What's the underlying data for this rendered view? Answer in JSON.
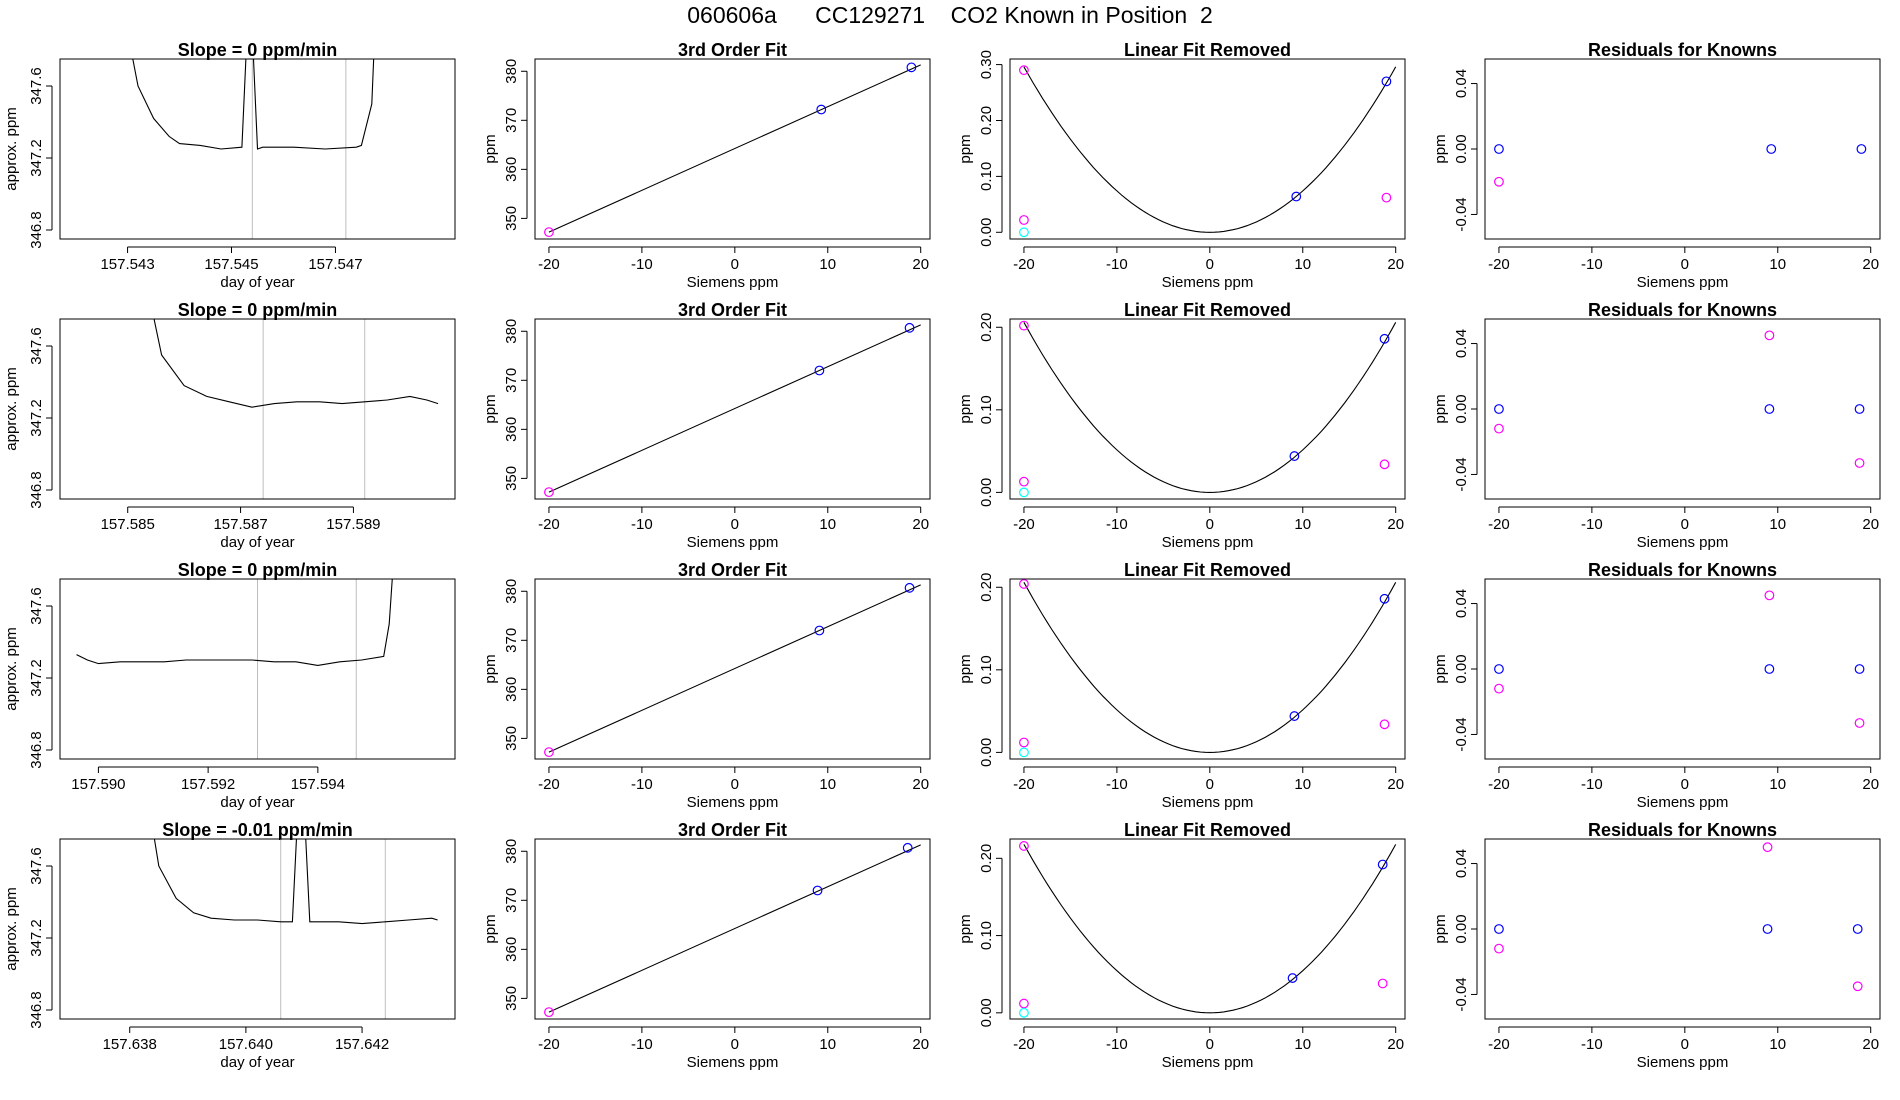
{
  "figure": {
    "title": "060606a      CC129271    CO2 Known in Position  2"
  },
  "colors": {
    "frame": "#000000",
    "trace": "#000000",
    "gridline": "#bebebe",
    "blue_points": "#0000ff",
    "magenta_points": "#ff00ff",
    "cyan_points": "#00ffff",
    "red_marker": "#ff0000"
  },
  "chart_data": [
    {
      "type": "line",
      "row": 0,
      "col": 0,
      "title": "Slope =  0  ppm/min",
      "xlabel": "day of year",
      "ylabel": "approx. ppm",
      "xlim": [
        157.5417,
        157.5493
      ],
      "ylim": [
        346.75,
        347.75
      ],
      "xticks": [
        157.543,
        157.545,
        157.547
      ],
      "xticklabels": [
        "157.543",
        "157.545",
        "157.547"
      ],
      "yticks": [
        346.8,
        347.2,
        347.6
      ],
      "yticklabels": [
        "346.8",
        "347.2",
        "347.6"
      ],
      "vlines": [
        157.5454,
        157.5472
      ],
      "series": [
        {
          "x": [
            157.5428,
            157.5432,
            157.5435,
            157.5438,
            157.544,
            157.5444,
            157.5448,
            157.5452,
            157.5453,
            157.5454,
            157.5455,
            157.5456,
            157.5462,
            157.5468,
            157.5474,
            157.5475,
            157.5477,
            157.5478
          ],
          "y": [
            348.2,
            347.6,
            347.42,
            347.32,
            347.28,
            347.27,
            347.25,
            347.26,
            347.9,
            347.9,
            347.25,
            347.26,
            347.26,
            347.25,
            347.26,
            347.27,
            347.5,
            348.2
          ]
        }
      ]
    },
    {
      "type": "scatter",
      "row": 0,
      "col": 1,
      "title": "3rd Order Fit",
      "xlabel": "Siemens ppm",
      "ylabel": "ppm",
      "xlim": [
        -21.5,
        21
      ],
      "ylim": [
        345.8,
        382.5
      ],
      "xticks": [
        -20,
        -10,
        0,
        10,
        20
      ],
      "xticklabels": [
        "-20",
        "-10",
        "0",
        "10",
        "20"
      ],
      "yticks": [
        350,
        360,
        370,
        380
      ],
      "yticklabels": [
        "350",
        "360",
        "370",
        "380"
      ],
      "fit_line": [
        [
          -20,
          347.2
        ],
        [
          20,
          381.3
        ]
      ],
      "points": [
        {
          "x": -20,
          "y": 347.2,
          "color": "magenta"
        },
        {
          "x": 9.3,
          "y": 372.2,
          "color": "blue"
        },
        {
          "x": 19,
          "y": 380.8,
          "color": "blue"
        }
      ]
    },
    {
      "type": "scatter",
      "row": 0,
      "col": 2,
      "title": "Linear Fit Removed",
      "xlabel": "Siemens ppm",
      "ylabel": "ppm",
      "xlim": [
        -21.5,
        21
      ],
      "ylim": [
        -0.012,
        0.31
      ],
      "xticks": [
        -20,
        -10,
        0,
        10,
        20
      ],
      "xticklabels": [
        "-20",
        "-10",
        "0",
        "10",
        "20"
      ],
      "yticks": [
        0,
        0.1,
        0.2,
        0.3
      ],
      "yticklabels": [
        "0.00",
        "0.10",
        "0.20",
        "0.30"
      ],
      "curve": {
        "x_from": -20,
        "x_to": 20,
        "coef": 0.00074
      },
      "points": [
        {
          "x": -20,
          "y": 0.29,
          "color": "magenta"
        },
        {
          "x": -20,
          "y": 0.022,
          "color": "magenta"
        },
        {
          "x": -20,
          "y": 0.0,
          "color": "cyan"
        },
        {
          "x": 9.3,
          "y": 0.064,
          "color": "blue"
        },
        {
          "x": 19,
          "y": 0.27,
          "color": "blue"
        },
        {
          "x": 19,
          "y": 0.062,
          "color": "magenta"
        }
      ]
    },
    {
      "type": "scatter",
      "row": 0,
      "col": 3,
      "title": "Residuals for Knowns",
      "xlabel": "Siemens ppm",
      "ylabel": "ppm",
      "xlim": [
        -21.5,
        21
      ],
      "ylim": [
        -0.055,
        0.055
      ],
      "xticks": [
        -20,
        -10,
        0,
        10,
        20
      ],
      "xticklabels": [
        "-20",
        "-10",
        "0",
        "10",
        "20"
      ],
      "yticks": [
        -0.04,
        0,
        0.04
      ],
      "yticklabels": [
        "-0.04",
        "0.00",
        "0.04"
      ],
      "points": [
        {
          "x": -20,
          "y": 0.0,
          "color": "blue"
        },
        {
          "x": -20,
          "y": -0.02,
          "color": "magenta"
        },
        {
          "x": 9.3,
          "y": 0.0,
          "color": "blue"
        },
        {
          "x": 19,
          "y": 0.0,
          "color": "blue"
        }
      ]
    },
    {
      "type": "line",
      "row": 1,
      "col": 0,
      "title": "Slope =  0  ppm/min",
      "xlabel": "day of year",
      "ylabel": "approx. ppm",
      "xlim": [
        157.5838,
        157.5908
      ],
      "ylim": [
        346.75,
        347.75
      ],
      "xticks": [
        157.585,
        157.587,
        157.589
      ],
      "xticklabels": [
        "157.585",
        "157.587",
        "157.589"
      ],
      "vlines": [
        157.5874,
        157.5892
      ],
      "yticks": [
        346.8,
        347.2,
        347.6
      ],
      "yticklabels": [
        "346.8",
        "347.2",
        "347.6"
      ],
      "series": [
        {
          "x": [
            157.5853,
            157.5856,
            157.586,
            157.5864,
            157.5868,
            157.5872,
            157.5876,
            157.588,
            157.5884,
            157.5888,
            157.5892,
            157.5896,
            157.59,
            157.5903,
            157.5905
          ],
          "y": [
            348.0,
            347.55,
            347.38,
            347.32,
            347.29,
            347.26,
            347.28,
            347.29,
            347.29,
            347.28,
            347.29,
            347.3,
            347.32,
            347.3,
            347.28
          ]
        }
      ]
    },
    {
      "type": "scatter",
      "row": 1,
      "col": 1,
      "title": "3rd Order Fit",
      "xlabel": "Siemens ppm",
      "ylabel": "ppm",
      "xlim": [
        -21.5,
        21
      ],
      "ylim": [
        345.8,
        382.5
      ],
      "xticks": [
        -20,
        -10,
        0,
        10,
        20
      ],
      "xticklabels": [
        "-20",
        "-10",
        "0",
        "10",
        "20"
      ],
      "yticks": [
        350,
        360,
        370,
        380
      ],
      "yticklabels": [
        "350",
        "360",
        "370",
        "380"
      ],
      "fit_line": [
        [
          -20,
          347.2
        ],
        [
          20,
          381.3
        ]
      ],
      "points": [
        {
          "x": -20,
          "y": 347.2,
          "color": "magenta"
        },
        {
          "x": 9.1,
          "y": 372.0,
          "color": "blue"
        },
        {
          "x": 18.8,
          "y": 380.7,
          "color": "blue"
        }
      ]
    },
    {
      "type": "scatter",
      "row": 1,
      "col": 2,
      "title": "Linear Fit Removed",
      "xlabel": "Siemens ppm",
      "ylabel": "ppm",
      "xlim": [
        -21.5,
        21
      ],
      "ylim": [
        -0.008,
        0.21
      ],
      "xticks": [
        -20,
        -10,
        0,
        10,
        20
      ],
      "xticklabels": [
        "-20",
        "-10",
        "0",
        "10",
        "20"
      ],
      "yticks": [
        0,
        0.1,
        0.2
      ],
      "yticklabels": [
        "0.00",
        "0.10",
        "0.20"
      ],
      "curve": {
        "x_from": -20,
        "x_to": 20,
        "coef": 0.000515
      },
      "points": [
        {
          "x": -20,
          "y": 0.202,
          "color": "magenta"
        },
        {
          "x": -20,
          "y": 0.013,
          "color": "magenta"
        },
        {
          "x": -20,
          "y": 0.0,
          "color": "cyan"
        },
        {
          "x": 9.1,
          "y": 0.044,
          "color": "blue"
        },
        {
          "x": 18.8,
          "y": 0.186,
          "color": "blue"
        },
        {
          "x": 18.8,
          "y": 0.034,
          "color": "magenta"
        }
      ]
    },
    {
      "type": "scatter",
      "row": 1,
      "col": 3,
      "title": "Residuals for Knowns",
      "xlabel": "Siemens ppm",
      "ylabel": "ppm",
      "xlim": [
        -21.5,
        21
      ],
      "ylim": [
        -0.055,
        0.055
      ],
      "xticks": [
        -20,
        -10,
        0,
        10,
        20
      ],
      "xticklabels": [
        "-20",
        "-10",
        "0",
        "10",
        "20"
      ],
      "yticks": [
        -0.04,
        0,
        0.04
      ],
      "yticklabels": [
        "-0.04",
        "0.00",
        "0.04"
      ],
      "points": [
        {
          "x": -20,
          "y": 0.0,
          "color": "blue"
        },
        {
          "x": -20,
          "y": -0.012,
          "color": "magenta"
        },
        {
          "x": 9.1,
          "y": 0.0,
          "color": "blue"
        },
        {
          "x": 9.1,
          "y": 0.045,
          "color": "magenta"
        },
        {
          "x": 18.8,
          "y": 0.0,
          "color": "blue"
        },
        {
          "x": 18.8,
          "y": -0.033,
          "color": "magenta"
        }
      ]
    },
    {
      "type": "line",
      "row": 2,
      "col": 0,
      "title": "Slope =  0  ppm/min",
      "xlabel": "day of year",
      "ylabel": "approx. ppm",
      "xlim": [
        157.5893,
        157.5965
      ],
      "ylim": [
        346.75,
        347.75
      ],
      "xticks": [
        157.59,
        157.592,
        157.594
      ],
      "xticklabels": [
        "157.590",
        "157.592",
        "157.594"
      ],
      "vlines": [
        157.5929,
        157.5947
      ],
      "yticks": [
        346.8,
        347.2,
        347.6
      ],
      "yticklabels": [
        "346.8",
        "347.2",
        "347.6"
      ],
      "series": [
        {
          "x": [
            157.5896,
            157.5898,
            157.59,
            157.5904,
            157.5908,
            157.5912,
            157.5916,
            157.592,
            157.5924,
            157.5928,
            157.5932,
            157.5936,
            157.594,
            157.5944,
            157.5948,
            157.5952,
            157.5953,
            157.5954
          ],
          "y": [
            347.33,
            347.3,
            347.28,
            347.29,
            347.29,
            347.29,
            347.3,
            347.3,
            347.3,
            347.3,
            347.29,
            347.29,
            347.27,
            347.29,
            347.3,
            347.32,
            347.5,
            347.95
          ]
        }
      ]
    },
    {
      "type": "scatter",
      "row": 2,
      "col": 1,
      "title": "3rd Order Fit",
      "xlabel": "Siemens ppm",
      "ylabel": "ppm",
      "xlim": [
        -21.5,
        21
      ],
      "ylim": [
        345.8,
        382.5
      ],
      "xticks": [
        -20,
        -10,
        0,
        10,
        20
      ],
      "xticklabels": [
        "-20",
        "-10",
        "0",
        "10",
        "20"
      ],
      "yticks": [
        350,
        360,
        370,
        380
      ],
      "yticklabels": [
        "350",
        "360",
        "370",
        "380"
      ],
      "fit_line": [
        [
          -20,
          347.2
        ],
        [
          20,
          381.3
        ]
      ],
      "points": [
        {
          "x": -20,
          "y": 347.2,
          "color": "magenta"
        },
        {
          "x": 9.1,
          "y": 372.0,
          "color": "blue"
        },
        {
          "x": 18.8,
          "y": 380.7,
          "color": "blue"
        }
      ]
    },
    {
      "type": "scatter",
      "row": 2,
      "col": 2,
      "title": "Linear Fit Removed",
      "xlabel": "Siemens ppm",
      "ylabel": "ppm",
      "xlim": [
        -21.5,
        21
      ],
      "ylim": [
        -0.008,
        0.21
      ],
      "xticks": [
        -20,
        -10,
        0,
        10,
        20
      ],
      "xticklabels": [
        "-20",
        "-10",
        "0",
        "10",
        "20"
      ],
      "yticks": [
        0,
        0.1,
        0.2
      ],
      "yticklabels": [
        "0.00",
        "0.10",
        "0.20"
      ],
      "curve": {
        "x_from": -20,
        "x_to": 20,
        "coef": 0.000515
      },
      "points": [
        {
          "x": -20,
          "y": 0.204,
          "color": "magenta"
        },
        {
          "x": -20,
          "y": 0.012,
          "color": "magenta"
        },
        {
          "x": -20,
          "y": 0.0,
          "color": "cyan"
        },
        {
          "x": 9.1,
          "y": 0.044,
          "color": "blue"
        },
        {
          "x": 18.8,
          "y": 0.186,
          "color": "blue"
        },
        {
          "x": 18.8,
          "y": 0.034,
          "color": "magenta"
        }
      ]
    },
    {
      "type": "scatter",
      "row": 2,
      "col": 3,
      "title": "Residuals for Knowns",
      "xlabel": "Siemens ppm",
      "ylabel": "ppm",
      "xlim": [
        -21.5,
        21
      ],
      "ylim": [
        -0.055,
        0.055
      ],
      "xticks": [
        -20,
        -10,
        0,
        10,
        20
      ],
      "xticklabels": [
        "-20",
        "-10",
        "0",
        "10",
        "20"
      ],
      "yticks": [
        -0.04,
        0,
        0.04
      ],
      "yticklabels": [
        "-0.04",
        "0.00",
        "0.04"
      ],
      "points": [
        {
          "x": -20,
          "y": 0.0,
          "color": "blue"
        },
        {
          "x": -20,
          "y": -0.012,
          "color": "magenta"
        },
        {
          "x": 9.1,
          "y": 0.0,
          "color": "blue"
        },
        {
          "x": 9.1,
          "y": 0.045,
          "color": "magenta"
        },
        {
          "x": 18.8,
          "y": 0.0,
          "color": "blue"
        },
        {
          "x": 18.8,
          "y": -0.033,
          "color": "magenta"
        }
      ]
    },
    {
      "type": "line",
      "row": 3,
      "col": 0,
      "title": "Slope =  -0.01  ppm/min",
      "xlabel": "day of year",
      "ylabel": "approx. ppm",
      "xlim": [
        157.6368,
        157.6436
      ],
      "ylim": [
        346.75,
        347.75
      ],
      "xticks": [
        157.638,
        157.64,
        157.642
      ],
      "xticklabels": [
        "157.638",
        "157.640",
        "157.642"
      ],
      "vlines": [
        157.6406,
        157.6424
      ],
      "yticks": [
        346.8,
        347.2,
        347.6
      ],
      "yticklabels": [
        "346.8",
        "347.2",
        "347.6"
      ],
      "series": [
        {
          "x": [
            157.6382,
            157.6385,
            157.6388,
            157.6391,
            157.6394,
            157.6398,
            157.6402,
            157.6406,
            157.6408,
            157.6409,
            157.641,
            157.6411,
            157.6416,
            157.642,
            157.6424,
            157.6428,
            157.6432,
            157.6433
          ],
          "y": [
            348.2,
            347.6,
            347.42,
            347.34,
            347.31,
            347.3,
            347.3,
            347.29,
            347.29,
            347.95,
            347.95,
            347.29,
            347.29,
            347.28,
            347.29,
            347.3,
            347.31,
            347.3
          ]
        }
      ]
    },
    {
      "type": "scatter",
      "row": 3,
      "col": 1,
      "title": "3rd Order Fit",
      "xlabel": "Siemens ppm",
      "ylabel": "ppm",
      "xlim": [
        -21.5,
        21
      ],
      "ylim": [
        345.8,
        382.5
      ],
      "xticks": [
        -20,
        -10,
        0,
        10,
        20
      ],
      "xticklabels": [
        "-20",
        "-10",
        "0",
        "10",
        "20"
      ],
      "yticks": [
        350,
        360,
        370,
        380
      ],
      "yticklabels": [
        "350",
        "360",
        "370",
        "380"
      ],
      "fit_line": [
        [
          -20,
          347.2
        ],
        [
          20,
          381.3
        ]
      ],
      "points": [
        {
          "x": -20,
          "y": 347.2,
          "color": "magenta"
        },
        {
          "x": 8.9,
          "y": 372.0,
          "color": "blue"
        },
        {
          "x": 18.6,
          "y": 380.7,
          "color": "blue"
        }
      ]
    },
    {
      "type": "scatter",
      "row": 3,
      "col": 2,
      "title": "Linear Fit Removed",
      "xlabel": "Siemens ppm",
      "ylabel": "ppm",
      "xlim": [
        -21.5,
        21
      ],
      "ylim": [
        -0.008,
        0.225
      ],
      "xticks": [
        -20,
        -10,
        0,
        10,
        20
      ],
      "xticklabels": [
        "-20",
        "-10",
        "0",
        "10",
        "20"
      ],
      "yticks": [
        0,
        0.1,
        0.2
      ],
      "yticklabels": [
        "0.00",
        "0.10",
        "0.20"
      ],
      "curve": {
        "x_from": -20,
        "x_to": 20,
        "coef": 0.000545
      },
      "points": [
        {
          "x": -20,
          "y": 0.216,
          "color": "magenta"
        },
        {
          "x": -20,
          "y": 0.012,
          "color": "magenta"
        },
        {
          "x": -20,
          "y": 0.0,
          "color": "cyan"
        },
        {
          "x": 8.9,
          "y": 0.045,
          "color": "blue"
        },
        {
          "x": 18.6,
          "y": 0.192,
          "color": "blue"
        },
        {
          "x": 18.6,
          "y": 0.038,
          "color": "magenta"
        }
      ]
    },
    {
      "type": "scatter",
      "row": 3,
      "col": 3,
      "title": "Residuals for Knowns",
      "xlabel": "Siemens ppm",
      "ylabel": "ppm",
      "xlim": [
        -21.5,
        21
      ],
      "ylim": [
        -0.055,
        0.055
      ],
      "xticks": [
        -20,
        -10,
        0,
        10,
        20
      ],
      "xticklabels": [
        "-20",
        "-10",
        "0",
        "10",
        "20"
      ],
      "yticks": [
        -0.04,
        0,
        0.04
      ],
      "yticklabels": [
        "-0.04",
        "0.00",
        "0.04"
      ],
      "points": [
        {
          "x": -20,
          "y": 0.0,
          "color": "blue"
        },
        {
          "x": -20,
          "y": -0.012,
          "color": "magenta"
        },
        {
          "x": 8.9,
          "y": 0.0,
          "color": "blue"
        },
        {
          "x": 8.9,
          "y": 0.05,
          "color": "magenta"
        },
        {
          "x": 18.6,
          "y": 0.0,
          "color": "blue"
        },
        {
          "x": 18.6,
          "y": -0.035,
          "color": "magenta"
        }
      ]
    }
  ]
}
